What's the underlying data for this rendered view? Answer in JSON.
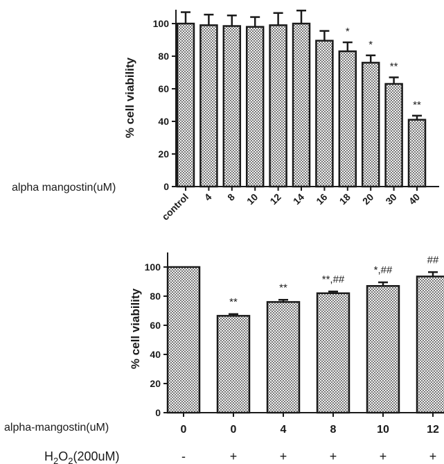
{
  "chart_data": [
    {
      "type": "bar",
      "title": "",
      "ylabel": "% cell viability",
      "xlabel": "alpha mangostin(uM)",
      "ylim": [
        0,
        110
      ],
      "yticks": [
        "0",
        "20",
        "40",
        "60",
        "80",
        "100"
      ],
      "categories": [
        "control",
        "4",
        "8",
        "10",
        "12",
        "14",
        "16",
        "18",
        "20",
        "30",
        "40"
      ],
      "values": [
        100,
        99,
        98.5,
        98,
        99,
        100,
        89.5,
        83,
        76,
        63,
        41
      ],
      "errors": [
        7,
        6.5,
        6.5,
        6,
        7.5,
        8,
        6,
        5.5,
        4.5,
        4,
        2.5
      ],
      "significance": [
        "",
        "",
        "",
        "",
        "",
        "",
        "",
        "*",
        "*",
        "**",
        "**"
      ],
      "grid": false,
      "x_tick_rotation": "45deg"
    },
    {
      "type": "bar",
      "title": "",
      "ylabel": "% cell viability",
      "xlabel": "alpha-mangostin(uM)",
      "ylim": [
        0,
        110
      ],
      "yticks": [
        "0",
        "20",
        "40",
        "60",
        "80",
        "100"
      ],
      "categories": [
        "0",
        "0",
        "4",
        "8",
        "10",
        "12"
      ],
      "values": [
        100,
        66.5,
        76,
        82,
        87,
        93.5
      ],
      "errors": [
        0,
        1.2,
        1.5,
        1.2,
        2.5,
        3
      ],
      "significance": [
        "",
        "**",
        "**",
        "**,##",
        "*,##",
        "##"
      ],
      "grid": false,
      "second_row": {
        "label_main": "H",
        "label_sub1": "2",
        "label_mid": "O",
        "label_sub2": "2",
        "label_end": "(200uM)",
        "values": [
          "-",
          "+",
          "+",
          "+",
          "+",
          "+"
        ]
      }
    }
  ]
}
